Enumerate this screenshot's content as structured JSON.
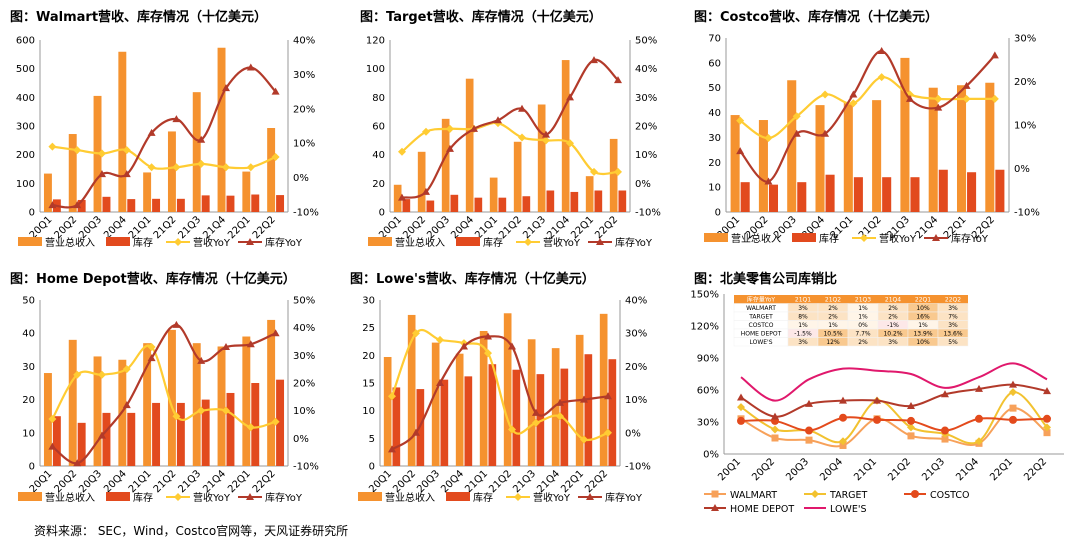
{
  "source": "资料来源：  SEC，Wind，Costco官网等，天风证券研究所",
  "colors": {
    "revenue": "#F5922F",
    "inventory": "#E24A1E",
    "rev_yoy": "#FFCC33",
    "inv_yoy": "#B23A2A"
  },
  "chart_data": [
    {
      "type": "bar+line",
      "title": "图：Walmart营收、库存情况（十亿美元）",
      "categories": [
        "20Q1",
        "20Q2",
        "20Q3",
        "20Q4",
        "21Q1",
        "21Q2",
        "21Q3",
        "21Q4",
        "22Q1",
        "22Q2"
      ],
      "ylim": [
        0,
        600
      ],
      "yticks": [
        0,
        100,
        200,
        300,
        400,
        500,
        600
      ],
      "y2lim": [
        -10,
        40
      ],
      "y2ticks": [
        "-10%",
        "0%",
        "10%",
        "20%",
        "30%",
        "40%"
      ],
      "series": [
        {
          "name": "营业总收入",
          "kind": "bar",
          "values": [
            134,
            272,
            405,
            559,
            138,
            281,
            418,
            573,
            141,
            293
          ]
        },
        {
          "name": "库存",
          "kind": "bar",
          "values": [
            44,
            42,
            53,
            45,
            46,
            46,
            58,
            57,
            61,
            59
          ]
        },
        {
          "name": "营收YoY",
          "kind": "line",
          "values": [
            9,
            8,
            7,
            8,
            3,
            3,
            4,
            3,
            3,
            6
          ]
        },
        {
          "name": "库存YoY",
          "kind": "line",
          "values": [
            -8,
            -8,
            1,
            1,
            13,
            17,
            11,
            26,
            32,
            25
          ]
        }
      ],
      "legend": [
        "营业总收入",
        "库存",
        "营收YoY",
        "库存YoY"
      ]
    },
    {
      "type": "bar+line",
      "title": "图：Target营收、库存情况（十亿美元）",
      "categories": [
        "20Q1",
        "20Q2",
        "20Q3",
        "20Q4",
        "21Q1",
        "21Q2",
        "21Q3",
        "21Q4",
        "22Q1",
        "22Q2"
      ],
      "ylim": [
        0,
        120
      ],
      "yticks": [
        0,
        20,
        40,
        60,
        80,
        100,
        120
      ],
      "y2lim": [
        -10,
        50
      ],
      "y2ticks": [
        "-10%",
        "0%",
        "10%",
        "20%",
        "30%",
        "40%",
        "50%"
      ],
      "series": [
        {
          "name": "营业总收入",
          "kind": "bar",
          "values": [
            19,
            42,
            65,
            93,
            24,
            49,
            75,
            106,
            25,
            51
          ]
        },
        {
          "name": "库存",
          "kind": "bar",
          "values": [
            9,
            8,
            12,
            10,
            10,
            11,
            15,
            14,
            15,
            15
          ]
        },
        {
          "name": "营收YoY",
          "kind": "line",
          "values": [
            11,
            18,
            19,
            19,
            21,
            16,
            15,
            14,
            4,
            4
          ]
        },
        {
          "name": "库存YoY",
          "kind": "line",
          "values": [
            -5,
            -3,
            12,
            19,
            22,
            26,
            17,
            30,
            43,
            36
          ]
        }
      ],
      "legend": [
        "营业总收入",
        "库存",
        "营收YoY",
        "库存YoY"
      ]
    },
    {
      "type": "bar+line",
      "title": "图：Costco营收、库存情况（十亿美元）",
      "categories": [
        "20Q1",
        "20Q2",
        "20Q3",
        "20Q4",
        "21Q1",
        "21Q2",
        "21Q3",
        "21Q4",
        "22Q1",
        "22Q2"
      ],
      "ylim": [
        0,
        70
      ],
      "yticks": [
        0,
        10,
        20,
        30,
        40,
        50,
        60,
        70
      ],
      "y2lim": [
        -10,
        30
      ],
      "y2ticks": [
        "-10%",
        "0%",
        "10%",
        "20%",
        "30%"
      ],
      "series": [
        {
          "name": "营业总收入",
          "kind": "bar",
          "values": [
            39,
            37,
            53,
            43,
            44,
            45,
            62,
            50,
            51,
            52
          ]
        },
        {
          "name": "库存",
          "kind": "bar",
          "values": [
            12,
            11,
            12,
            15,
            14,
            14,
            14,
            17,
            16,
            17
          ]
        },
        {
          "name": "营收YoY",
          "kind": "line",
          "values": [
            11,
            7,
            12,
            17,
            15,
            21,
            17,
            16,
            16,
            16
          ]
        },
        {
          "name": "库存YoY",
          "kind": "line",
          "values": [
            4,
            -3,
            8,
            8,
            17,
            27,
            16,
            14,
            19,
            26
          ]
        }
      ],
      "legend": [
        "营业总收入",
        "库存",
        "营收YoY",
        "库存YoY"
      ]
    },
    {
      "type": "bar+line",
      "title": "图：Home Depot营收、库存情况（十亿美元）",
      "categories": [
        "20Q1",
        "20Q2",
        "20Q3",
        "20Q4",
        "21Q1",
        "21Q2",
        "21Q3",
        "21Q4",
        "22Q1",
        "22Q2"
      ],
      "ylim": [
        0,
        50
      ],
      "yticks": [
        0,
        10,
        20,
        30,
        40,
        50
      ],
      "y2lim": [
        -10,
        50
      ],
      "y2ticks": [
        "-10%",
        "0%",
        "10%",
        "20%",
        "30%",
        "40%",
        "50%"
      ],
      "series": [
        {
          "name": "营业总收入",
          "kind": "bar",
          "values": [
            28,
            38,
            33,
            32,
            37,
            41,
            37,
            36,
            39,
            44
          ]
        },
        {
          "name": "库存",
          "kind": "bar",
          "values": [
            15,
            13,
            16,
            16,
            19,
            19,
            20,
            22,
            25,
            26
          ]
        },
        {
          "name": "营收YoY",
          "kind": "line",
          "values": [
            7,
            23,
            23,
            25,
            33,
            8,
            10,
            10,
            4,
            6
          ]
        },
        {
          "name": "库存YoY",
          "kind": "line",
          "values": [
            -3,
            -9,
            1,
            12,
            29,
            41,
            28,
            33,
            34,
            38
          ]
        }
      ],
      "legend": [
        "营业总收入",
        "库存",
        "营收YoY",
        "库存YoY"
      ]
    },
    {
      "type": "bar+line",
      "title": "图：Lowe's营收、库存情况（十亿美元）",
      "categories": [
        "20Q1",
        "20Q2",
        "20Q3",
        "20Q4",
        "21Q1",
        "21Q2",
        "21Q3",
        "21Q4",
        "22Q1",
        "22Q2"
      ],
      "ylim": [
        0,
        30
      ],
      "yticks": [
        0,
        5,
        10,
        15,
        20,
        25,
        30
      ],
      "y2lim": [
        -10,
        40
      ],
      "y2ticks": [
        "-10%",
        "0%",
        "10%",
        "20%",
        "30%",
        "40%"
      ],
      "series": [
        {
          "name": "营业总收入",
          "kind": "bar",
          "values": [
            19.7,
            27.3,
            22.3,
            20.3,
            24.4,
            27.6,
            22.9,
            21.3,
            23.7,
            27.5
          ]
        },
        {
          "name": "库存",
          "kind": "bar",
          "values": [
            14.2,
            13.9,
            15.6,
            16.2,
            18.4,
            17.4,
            16.6,
            17.6,
            20.2,
            19.3
          ]
        },
        {
          "name": "营收YoY",
          "kind": "line",
          "values": [
            11,
            30,
            28,
            27,
            24,
            1,
            3,
            5,
            -2,
            0
          ]
        },
        {
          "name": "库存YoY",
          "kind": "line",
          "values": [
            -5,
            0,
            15,
            26,
            29,
            26,
            6,
            9,
            10,
            11
          ]
        }
      ],
      "legend": [
        "营业总收入",
        "库存",
        "营收YoY",
        "库存YoY"
      ]
    },
    {
      "type": "line",
      "title": "图：北美零售公司库销比",
      "categories": [
        "20Q1",
        "20Q2",
        "20Q3",
        "20Q4",
        "21Q1",
        "21Q2",
        "21Q3",
        "21Q4",
        "22Q1",
        "22Q2"
      ],
      "ylim": [
        0,
        150
      ],
      "yticks": [
        "0%",
        "30%",
        "60%",
        "90%",
        "120%",
        "150%"
      ],
      "series": [
        {
          "name": "WALMART",
          "values": [
            33,
            15,
            13,
            8,
            33,
            17,
            14,
            10,
            43,
            20
          ]
        },
        {
          "name": "TARGET",
          "values": [
            44,
            23,
            22,
            12,
            50,
            25,
            19,
            12,
            58,
            25
          ]
        },
        {
          "name": "COSTCO",
          "values": [
            31,
            31,
            22,
            34,
            32,
            31,
            22,
            33,
            32,
            33
          ]
        },
        {
          "name": "HOME DEPOT",
          "values": [
            53,
            35,
            47,
            50,
            50,
            45,
            56,
            61,
            65,
            59
          ]
        },
        {
          "name": "LOWE'S",
          "values": [
            72,
            50,
            70,
            80,
            78,
            75,
            62,
            72,
            85,
            70
          ]
        }
      ],
      "legend": [
        "WALMART",
        "TARGET",
        "COSTCO",
        "HOME DEPOT",
        "LOWE'S"
      ],
      "inset_table": {
        "headers": [
          "库存量YoY",
          "21Q1",
          "21Q2",
          "21Q3",
          "21Q4",
          "22Q1",
          "22Q2"
        ],
        "rows": [
          [
            "WALMART",
            "3%",
            "2%",
            "1%",
            "2%",
            "10%",
            "3%"
          ],
          [
            "TARGET",
            "8%",
            "2%",
            "1%",
            "2%",
            "16%",
            "7%"
          ],
          [
            "COSTCO",
            "1%",
            "1%",
            "0%",
            "-1%",
            "1%",
            "3%"
          ],
          [
            "HOME DEPOT",
            "-1.5%",
            "10.5%",
            "7.7%",
            "10.2%",
            "13.9%",
            "13.6%"
          ],
          [
            "LOWE'S",
            "3%",
            "12%",
            "2%",
            "3%",
            "10%",
            "5%"
          ]
        ]
      }
    }
  ]
}
